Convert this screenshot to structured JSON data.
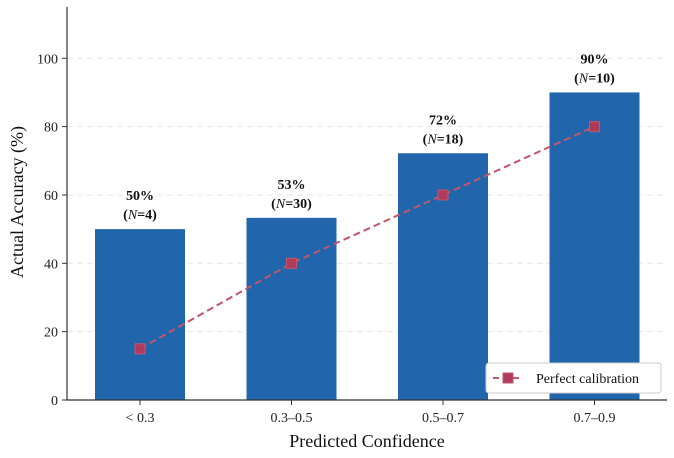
{
  "chart_data": {
    "type": "bar",
    "title": "",
    "xlabel": "Predicted Confidence",
    "ylabel": "Actual Accuracy (%)",
    "categories": [
      "< 0.3",
      "0.3–0.5",
      "0.5–0.7",
      "0.7–0.9"
    ],
    "values": [
      50,
      53.3,
      72.2,
      90
    ],
    "bar_labels": [
      {
        "pct": "50%",
        "n_prefix": "(",
        "n_var": "N",
        "n_text": "=4)"
      },
      {
        "pct": "53%",
        "n_prefix": "(",
        "n_var": "N",
        "n_text": "=30)"
      },
      {
        "pct": "72%",
        "n_prefix": "(",
        "n_var": "N",
        "n_text": "=18)"
      },
      {
        "pct": "90%",
        "n_prefix": "(",
        "n_var": "N",
        "n_text": "=10)"
      }
    ],
    "ylim": [
      0,
      115
    ],
    "yticks": [
      0,
      20,
      40,
      60,
      80,
      100
    ],
    "ytick_labels": [
      "0",
      "20",
      "40",
      "60",
      "80",
      "100"
    ],
    "grid": true,
    "series": [
      {
        "name": "Actual accuracy",
        "kind": "bar",
        "color": "#2166ac",
        "values": [
          50,
          53.3,
          72.2,
          90
        ]
      },
      {
        "name": "Perfect calibration",
        "kind": "line",
        "style": "dashed",
        "marker": "square",
        "color": "#c0566a",
        "values": [
          15,
          40,
          60,
          80
        ]
      }
    ],
    "legend": {
      "position": "bottom-right",
      "entries": [
        "Perfect calibration"
      ]
    }
  }
}
